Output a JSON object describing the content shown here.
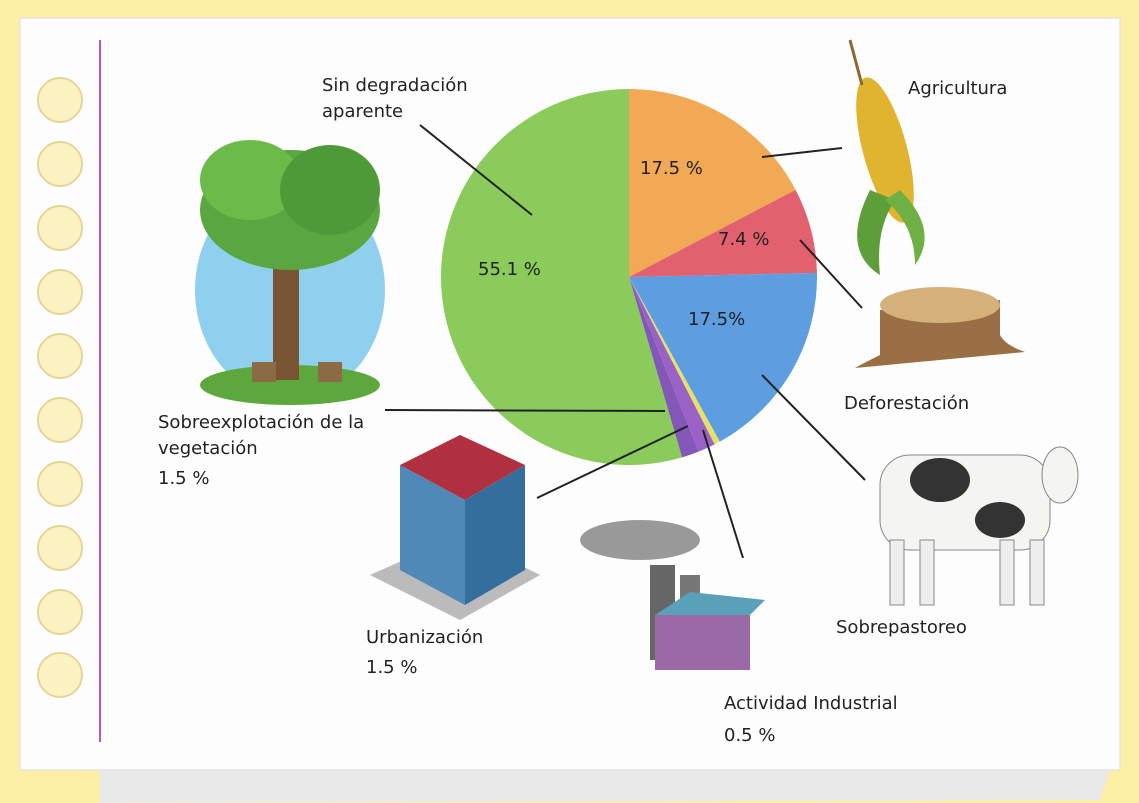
{
  "chart_data": {
    "type": "pie",
    "categories": [
      "Agricultura",
      "Deforestación",
      "Sobrepastoreo",
      "Actividad Industrial",
      "Urbanización",
      "Sobreexplotación de la vegetación",
      "Sin degradación aparente"
    ],
    "values": [
      17.5,
      7.4,
      17.5,
      0.5,
      1.5,
      1.5,
      55.1
    ],
    "value_labels": [
      "17.5 %",
      "7.4 %",
      "17.5%",
      "0.5 %",
      "1.5 %",
      "1.5 %",
      "55.1 %"
    ],
    "colors": [
      "#f2a956",
      "#e2616f",
      "#5d9de0",
      "#e6e268",
      "#9a62c4",
      "#8257b8",
      "#8acb5c"
    ]
  }
}
